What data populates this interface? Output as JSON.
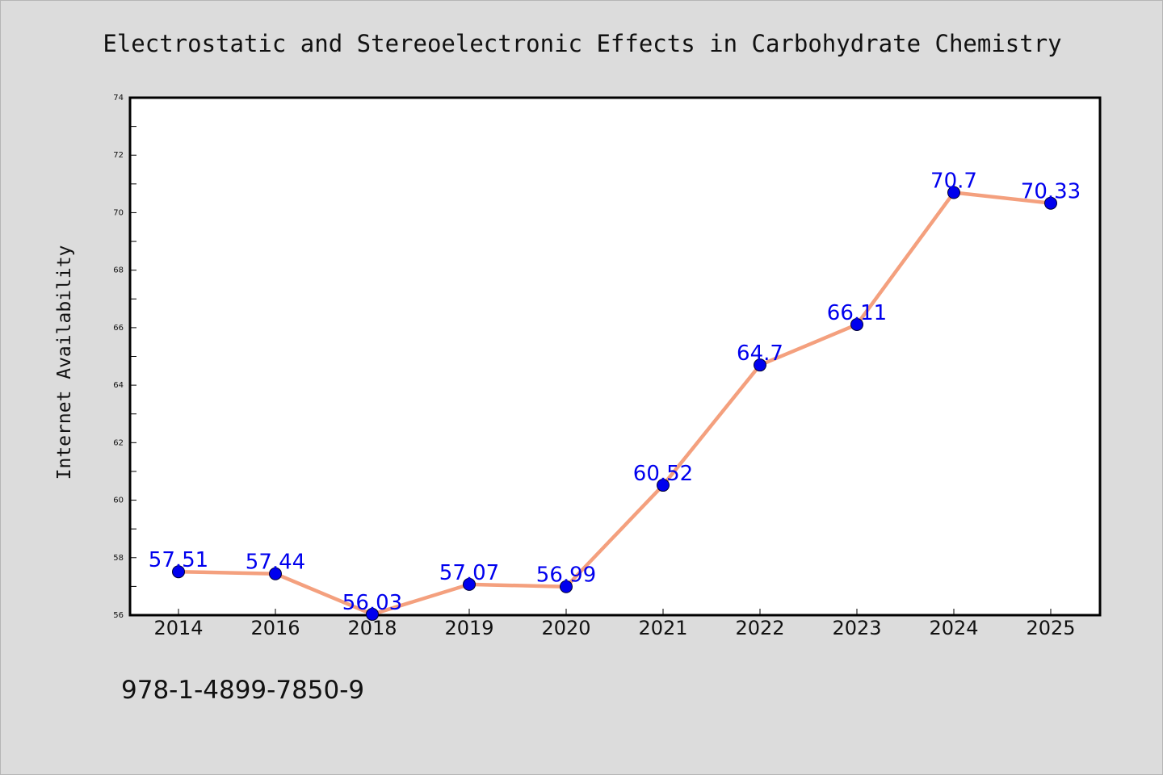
{
  "chart_data": {
    "type": "line",
    "title": "Electrostatic and Stereoelectronic Effects in Carbohydrate Chemistry",
    "xlabel": "",
    "ylabel": "Internet Availability",
    "categories": [
      "2014",
      "2016",
      "2018",
      "2019",
      "2020",
      "2021",
      "2022",
      "2023",
      "2024",
      "2025"
    ],
    "series": [
      {
        "values": [
          57.51,
          57.44,
          56.03,
          57.07,
          56.99,
          60.52,
          64.7,
          66.11,
          70.7,
          70.33
        ],
        "labels": [
          "57.51",
          "57.44",
          "56.03",
          "57.07",
          "56.99",
          "60.52",
          "64.7",
          "66.11",
          "70.7",
          "70.33"
        ]
      }
    ],
    "ylim": [
      56,
      74
    ],
    "yticks": [
      56,
      58,
      60,
      62,
      64,
      66,
      68,
      70,
      72,
      74
    ],
    "grid": false,
    "legend": "none",
    "colors": {
      "line": "#f4a07e",
      "marker": "#0000ee",
      "label": "#0000ee",
      "background": "#dcdcdc",
      "plot_area": "#ffffff"
    }
  },
  "footer": {
    "isbn": "978-1-4899-7850-9"
  }
}
